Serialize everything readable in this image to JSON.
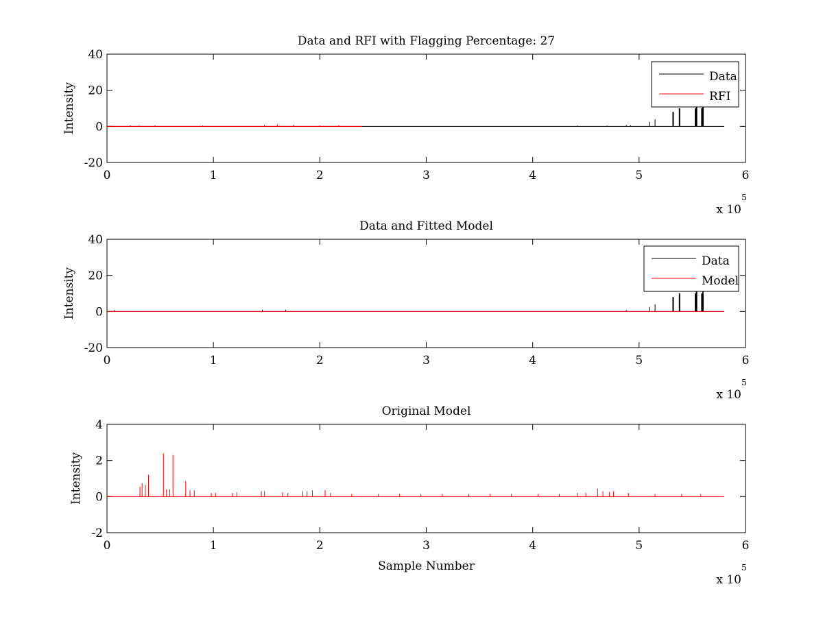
{
  "chart_data": [
    {
      "type": "line",
      "title": "Data and RFI with Flagging Percentage: 27",
      "xlabel": "",
      "ylabel": "Intensity",
      "xlim": [
        0,
        6
      ],
      "ylim": [
        -20,
        40
      ],
      "xticks": [
        "0",
        "1",
        "2",
        "3",
        "4",
        "5",
        "6"
      ],
      "yticks": [
        "-20",
        "0",
        "20",
        "40"
      ],
      "x_multiplier": "x 10",
      "x_multiplier_exp": "5",
      "legend_position": "top-right",
      "series": [
        {
          "name": "Data",
          "color": "#000000",
          "baseline": 0,
          "x_end": 5.8,
          "spikes": [
            {
              "x": 0.22,
              "y": 0.5
            },
            {
              "x": 4.42,
              "y": 0.4
            },
            {
              "x": 4.7,
              "y": 0.4
            },
            {
              "x": 4.88,
              "y": 0.8
            },
            {
              "x": 4.92,
              "y": 0.6
            },
            {
              "x": 5.1,
              "y": 2.5
            },
            {
              "x": 5.15,
              "y": 4
            },
            {
              "x": 5.32,
              "y": 8
            },
            {
              "x": 5.38,
              "y": 10
            },
            {
              "x": 5.53,
              "y": 10
            },
            {
              "x": 5.54,
              "y": 11
            },
            {
              "x": 5.59,
              "y": 10
            },
            {
              "x": 5.6,
              "y": 11
            }
          ]
        },
        {
          "name": "RFI",
          "color": "#ff0000",
          "baseline": 0,
          "x_end": 2.4,
          "spikes": [
            {
              "x": 0.3,
              "y": 0.4
            },
            {
              "x": 0.45,
              "y": 0.6
            },
            {
              "x": 0.9,
              "y": 0.5
            },
            {
              "x": 1.48,
              "y": 0.9
            },
            {
              "x": 1.6,
              "y": 1.1
            },
            {
              "x": 1.75,
              "y": 0.8
            },
            {
              "x": 2.0,
              "y": 0.5
            },
            {
              "x": 2.18,
              "y": 0.6
            }
          ]
        }
      ]
    },
    {
      "type": "line",
      "title": "Data and Fitted Model",
      "xlabel": "",
      "ylabel": "Intensity",
      "xlim": [
        0,
        6
      ],
      "ylim": [
        -20,
        40
      ],
      "xticks": [
        "0",
        "1",
        "2",
        "3",
        "4",
        "5",
        "6"
      ],
      "yticks": [
        "-20",
        "0",
        "20",
        "40"
      ],
      "x_multiplier": "x 10",
      "x_multiplier_exp": "5",
      "legend_position": "top-right",
      "series": [
        {
          "name": "Data",
          "color": "#000000",
          "baseline": 0,
          "x_end": 5.8,
          "spikes": [
            {
              "x": 0.07,
              "y": 0.8
            },
            {
              "x": 1.46,
              "y": 1
            },
            {
              "x": 1.68,
              "y": 1
            },
            {
              "x": 4.88,
              "y": 0.8
            },
            {
              "x": 5.1,
              "y": 2.5
            },
            {
              "x": 5.15,
              "y": 4
            },
            {
              "x": 5.32,
              "y": 8
            },
            {
              "x": 5.38,
              "y": 10
            },
            {
              "x": 5.53,
              "y": 10
            },
            {
              "x": 5.54,
              "y": 11
            },
            {
              "x": 5.59,
              "y": 10
            },
            {
              "x": 5.6,
              "y": 11
            }
          ]
        },
        {
          "name": "Model",
          "color": "#ff0000",
          "baseline": 0,
          "x_end": 5.8,
          "spikes": [
            {
              "x": 0.05,
              "y": 0.3
            },
            {
              "x": 0.3,
              "y": 0.2
            }
          ]
        }
      ]
    },
    {
      "type": "line",
      "title": "Original Model",
      "xlabel": "Sample Number",
      "ylabel": "Intensity",
      "xlim": [
        0,
        6
      ],
      "ylim": [
        -2,
        4
      ],
      "xticks": [
        "0",
        "1",
        "2",
        "3",
        "4",
        "5",
        "6"
      ],
      "yticks": [
        "-2",
        "0",
        "2",
        "4"
      ],
      "x_multiplier": "x 10",
      "x_multiplier_exp": "5",
      "legend_position": "",
      "series": [
        {
          "name": "Original Model",
          "color": "#ff0000",
          "baseline": 0,
          "x_end": 5.8,
          "spikes": [
            {
              "x": 0.31,
              "y": 0.55
            },
            {
              "x": 0.33,
              "y": 0.75
            },
            {
              "x": 0.36,
              "y": 0.65
            },
            {
              "x": 0.39,
              "y": 1.2
            },
            {
              "x": 0.53,
              "y": 2.4
            },
            {
              "x": 0.56,
              "y": 0.4
            },
            {
              "x": 0.59,
              "y": 0.4
            },
            {
              "x": 0.62,
              "y": 2.3
            },
            {
              "x": 0.74,
              "y": 0.85
            },
            {
              "x": 0.78,
              "y": 0.35
            },
            {
              "x": 0.82,
              "y": 0.35
            },
            {
              "x": 0.98,
              "y": 0.2
            },
            {
              "x": 1.02,
              "y": 0.2
            },
            {
              "x": 1.18,
              "y": 0.2
            },
            {
              "x": 1.22,
              "y": 0.25
            },
            {
              "x": 1.45,
              "y": 0.3
            },
            {
              "x": 1.48,
              "y": 0.3
            },
            {
              "x": 1.65,
              "y": 0.25
            },
            {
              "x": 1.7,
              "y": 0.2
            },
            {
              "x": 1.84,
              "y": 0.3
            },
            {
              "x": 1.88,
              "y": 0.3
            },
            {
              "x": 1.93,
              "y": 0.35
            },
            {
              "x": 2.05,
              "y": 0.35
            },
            {
              "x": 2.1,
              "y": 0.2
            },
            {
              "x": 2.3,
              "y": 0.15
            },
            {
              "x": 2.55,
              "y": 0.15
            },
            {
              "x": 2.75,
              "y": 0.15
            },
            {
              "x": 2.95,
              "y": 0.15
            },
            {
              "x": 3.15,
              "y": 0.15
            },
            {
              "x": 3.4,
              "y": 0.15
            },
            {
              "x": 3.6,
              "y": 0.15
            },
            {
              "x": 3.8,
              "y": 0.15
            },
            {
              "x": 4.05,
              "y": 0.15
            },
            {
              "x": 4.25,
              "y": 0.15
            },
            {
              "x": 4.42,
              "y": 0.2
            },
            {
              "x": 4.5,
              "y": 0.2
            },
            {
              "x": 4.61,
              "y": 0.45
            },
            {
              "x": 4.66,
              "y": 0.3
            },
            {
              "x": 4.72,
              "y": 0.25
            },
            {
              "x": 4.76,
              "y": 0.3
            },
            {
              "x": 4.9,
              "y": 0.2
            },
            {
              "x": 5.15,
              "y": 0.15
            },
            {
              "x": 5.4,
              "y": 0.15
            },
            {
              "x": 5.58,
              "y": 0.15
            }
          ]
        }
      ]
    }
  ]
}
